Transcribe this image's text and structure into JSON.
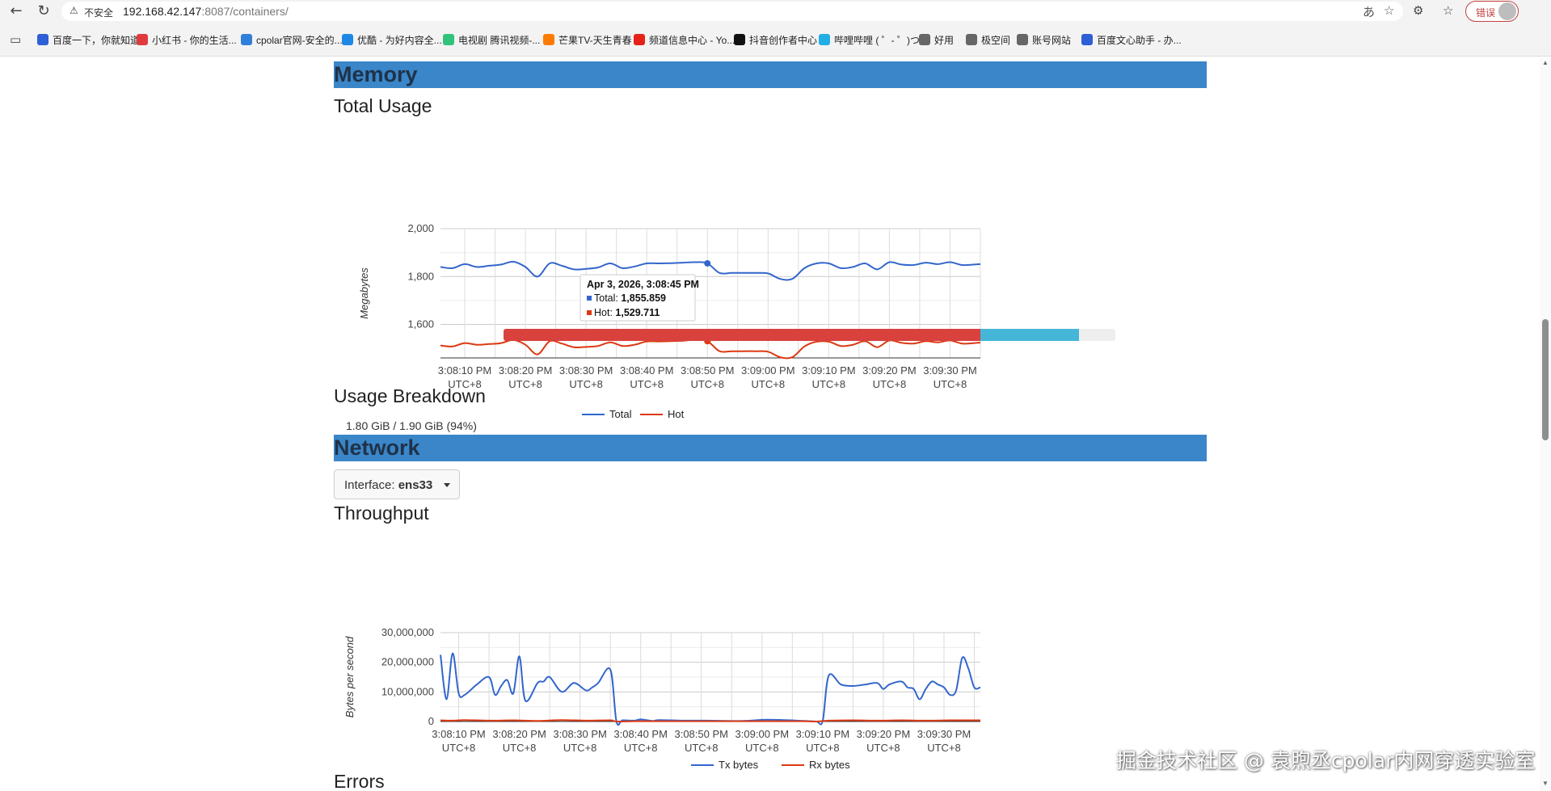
{
  "browser": {
    "security_label": "不安全",
    "url_host": "192.168.42.147",
    "url_rest": ":8087/containers/",
    "error_pill": "错误",
    "bookmarks": [
      {
        "label": "百度一下，你就知道",
        "color": "#2d5fd6"
      },
      {
        "label": "小红书 - 你的生活...",
        "color": "#e03a3e"
      },
      {
        "label": "cpolar官网-安全的...",
        "color": "#2f7fd8"
      },
      {
        "label": "优酷 - 为好内容全...",
        "color": "#1e88e5"
      },
      {
        "label": "电视剧 腾讯视频-...",
        "color": "#31c27c"
      },
      {
        "label": "芒果TV-天生青春",
        "color": "#ff7b00"
      },
      {
        "label": "频道信息中心 - Yo...",
        "color": "#e62117"
      },
      {
        "label": "抖音创作者中心",
        "color": "#111111"
      },
      {
        "label": "哔哩哔哩 ( ゜- ゜)つ...",
        "color": "#23ade5"
      },
      {
        "label": "好用",
        "color": "#666666"
      },
      {
        "label": "极空间",
        "color": "#666666"
      },
      {
        "label": "账号网站",
        "color": "#666666"
      },
      {
        "label": "百度文心助手 - 办...",
        "color": "#2d5fd6"
      }
    ]
  },
  "memory": {
    "section_title": "Memory",
    "total_usage_title": "Total Usage",
    "breakdown_title": "Usage Breakdown",
    "usage_text": "1.80 GiB / 1.90 GiB (94%)",
    "breakdown": {
      "used_fraction": 0.78,
      "hot_fraction": 0.16
    },
    "tooltip": {
      "title": "Apr 3, 2026, 3:08:45 PM",
      "total_label": "Total: ",
      "total_value": "1,855.859",
      "hot_label": "Hot: ",
      "hot_value": "1,529.711"
    }
  },
  "network": {
    "section_title": "Network",
    "interface_label": "Interface: ",
    "interface_value": "ens33",
    "throughput_title": "Throughput",
    "errors_title": "Errors"
  },
  "watermark": "掘金技术社区 @ 袁煦丞cpolar内网穿透实验室",
  "chart_data": [
    {
      "type": "line",
      "title": "Total Usage",
      "ylabel": "Megabytes",
      "ylim": [
        1460,
        2000
      ],
      "yticks": [
        "2,000",
        "1,800",
        "1,600"
      ],
      "ytick_values": [
        2000,
        1800,
        1600
      ],
      "x_labels": [
        "3:08:10 PM",
        "3:08:20 PM",
        "3:08:30 PM",
        "3:08:40 PM",
        "3:08:50 PM",
        "3:09:00 PM",
        "3:09:10 PM",
        "3:09:20 PM",
        "3:09:30 PM"
      ],
      "x_sub": "UTC+8",
      "xlim": [
        0,
        89
      ],
      "x_tick_positions": [
        4,
        14,
        24,
        34,
        44,
        54,
        64,
        74,
        84
      ],
      "grid": true,
      "legend_position": "bottom",
      "series": [
        {
          "name": "Total",
          "color": "#3366cc",
          "x": [
            0,
            2,
            4,
            6,
            8,
            10,
            12,
            14,
            16,
            18,
            20,
            22,
            24,
            26,
            28,
            30,
            32,
            34,
            36,
            38,
            40,
            42,
            44,
            46,
            48,
            50,
            52,
            54,
            56,
            58,
            60,
            62,
            64,
            66,
            68,
            70,
            72,
            74,
            76,
            78,
            80,
            82,
            84,
            86,
            88,
            89
          ],
          "y": [
            1840,
            1835,
            1852,
            1840,
            1845,
            1850,
            1862,
            1840,
            1800,
            1855,
            1845,
            1830,
            1832,
            1838,
            1855,
            1835,
            1842,
            1855,
            1855,
            1856,
            1858,
            1860,
            1855,
            1815,
            1815,
            1815,
            1815,
            1813,
            1790,
            1790,
            1835,
            1855,
            1855,
            1835,
            1840,
            1855,
            1830,
            1860,
            1850,
            1848,
            1858,
            1852,
            1860,
            1848,
            1850,
            1852
          ]
        },
        {
          "name": "Hot",
          "color": "#dc3912",
          "x": [
            0,
            2,
            4,
            6,
            8,
            10,
            12,
            14,
            16,
            18,
            20,
            22,
            24,
            26,
            28,
            30,
            32,
            34,
            36,
            38,
            40,
            42,
            44,
            46,
            48,
            50,
            52,
            54,
            56,
            58,
            60,
            62,
            64,
            66,
            68,
            70,
            72,
            74,
            76,
            78,
            80,
            82,
            84,
            86,
            88,
            89
          ],
          "y": [
            1512,
            1508,
            1522,
            1515,
            1518,
            1522,
            1535,
            1515,
            1475,
            1530,
            1520,
            1505,
            1506,
            1510,
            1525,
            1510,
            1515,
            1529,
            1529,
            1530,
            1532,
            1535,
            1530,
            1488,
            1488,
            1488,
            1488,
            1486,
            1463,
            1463,
            1508,
            1528,
            1528,
            1510,
            1515,
            1530,
            1505,
            1533,
            1523,
            1520,
            1530,
            1525,
            1533,
            1520,
            1522,
            1524
          ]
        }
      ]
    },
    {
      "type": "line",
      "title": "Throughput",
      "ylabel": "Bytes per second",
      "ylim": [
        0,
        30000000
      ],
      "yticks": [
        "30,000,000",
        "20,000,000",
        "10,000,000",
        "0"
      ],
      "ytick_values": [
        30000000,
        20000000,
        10000000,
        0
      ],
      "x_labels": [
        "3:08:10 PM",
        "3:08:20 PM",
        "3:08:30 PM",
        "3:08:40 PM",
        "3:08:50 PM",
        "3:09:00 PM",
        "3:09:10 PM",
        "3:09:20 PM",
        "3:09:30 PM"
      ],
      "x_sub": "UTC+8",
      "xlim": [
        0,
        89
      ],
      "x_tick_positions": [
        3,
        13,
        23,
        33,
        43,
        53,
        63,
        73,
        83
      ],
      "grid": true,
      "legend_position": "bottom",
      "series": [
        {
          "name": "Tx bytes",
          "color": "#3366cc",
          "x": [
            0,
            1,
            2,
            3,
            4,
            6,
            8,
            9,
            10,
            11,
            12,
            13,
            14,
            16,
            17,
            18,
            20,
            22,
            24,
            25,
            26,
            28,
            29,
            30,
            32,
            33,
            35,
            36,
            40,
            44,
            50,
            54,
            60,
            62,
            63,
            64,
            66,
            68,
            70,
            72,
            73,
            74,
            76,
            77,
            78,
            79,
            80,
            81,
            82,
            83,
            84,
            85,
            86,
            87,
            88,
            89
          ],
          "y": [
            22500000,
            7500000,
            23000000,
            9500000,
            9000000,
            12500000,
            15000000,
            9000000,
            12000000,
            14000000,
            9500000,
            22000000,
            7000000,
            13000000,
            13500000,
            15000000,
            10000000,
            13000000,
            10500000,
            11500000,
            13000000,
            17500000,
            0,
            400000,
            300000,
            700000,
            200000,
            500000,
            300000,
            300000,
            200000,
            600000,
            200000,
            0,
            200000,
            15500000,
            12500000,
            12000000,
            12500000,
            13000000,
            11000000,
            12500000,
            13500000,
            11500000,
            11000000,
            7500000,
            11000000,
            13500000,
            12500000,
            11500000,
            9000000,
            10500000,
            21500000,
            18000000,
            11500000,
            11500000
          ]
        },
        {
          "name": "Rx bytes",
          "color": "#dc3912",
          "x": [
            0,
            2,
            4,
            8,
            12,
            16,
            20,
            24,
            28,
            29,
            32,
            36,
            40,
            44,
            48,
            52,
            56,
            60,
            62,
            64,
            68,
            72,
            76,
            80,
            84,
            89
          ],
          "y": [
            400000,
            300000,
            500000,
            300000,
            400000,
            200000,
            500000,
            300000,
            400000,
            0,
            100000,
            100000,
            100000,
            100000,
            100000,
            100000,
            100000,
            100000,
            0,
            300000,
            400000,
            300000,
            400000,
            300000,
            400000,
            400000
          ]
        }
      ]
    }
  ]
}
